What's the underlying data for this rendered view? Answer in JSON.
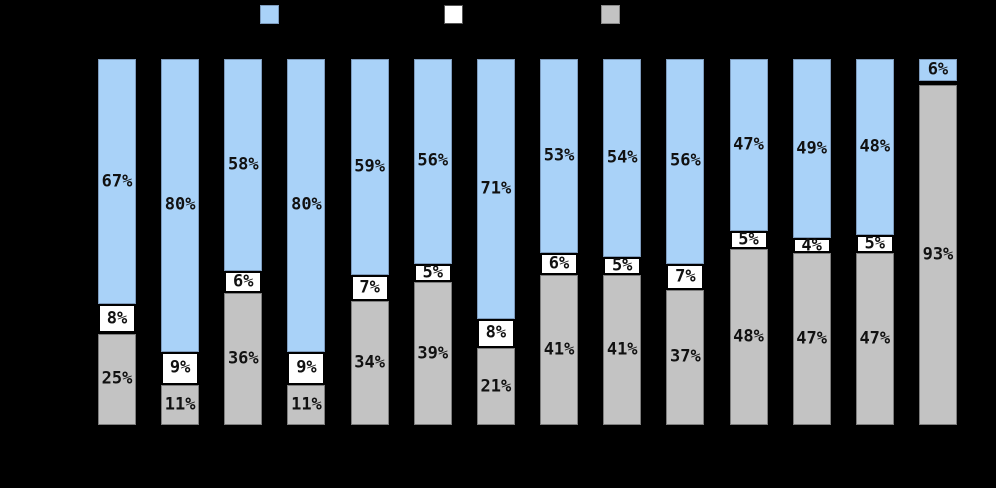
{
  "window": {
    "background_color": "#000000"
  },
  "legend": {
    "items": [
      {
        "id": "series-1",
        "swatch_color": "#A9D2F8",
        "swatch_border": "#7E9CBE"
      },
      {
        "id": "series-2",
        "swatch_color": "#FFFFFF",
        "swatch_border": "#555555"
      },
      {
        "id": "series-3",
        "swatch_color": "#C3C3C3",
        "swatch_border": "#8A8A8A"
      }
    ]
  },
  "chart_data": {
    "type": "bar",
    "stacked": true,
    "percent_stacked": true,
    "bar_count": 14,
    "unit": "%",
    "ylim": [
      0,
      100
    ],
    "grid": false,
    "legend_position": "top",
    "stack_order_top_to_bottom": [
      "series-1",
      "series-2",
      "series-3"
    ],
    "series": [
      {
        "id": "series-1",
        "color": "#A9D2F8",
        "border_color": "#7E9CBE",
        "values": [
          67,
          80,
          58,
          80,
          59,
          56,
          71,
          53,
          54,
          56,
          47,
          49,
          48,
          6
        ]
      },
      {
        "id": "series-2",
        "color": "#FFFFFF",
        "border_color": "#000000",
        "values": [
          8,
          9,
          6,
          9,
          7,
          5,
          8,
          6,
          5,
          7,
          5,
          4,
          5,
          1
        ]
      },
      {
        "id": "series-3",
        "color": "#C3C3C3",
        "border_color": "#7E7E7E",
        "values": [
          25,
          11,
          36,
          11,
          34,
          39,
          21,
          41,
          41,
          37,
          48,
          47,
          47,
          93
        ]
      }
    ],
    "data_labels": {
      "format": "{value}%",
      "min_value_to_show": 2,
      "color": "#111111"
    }
  }
}
